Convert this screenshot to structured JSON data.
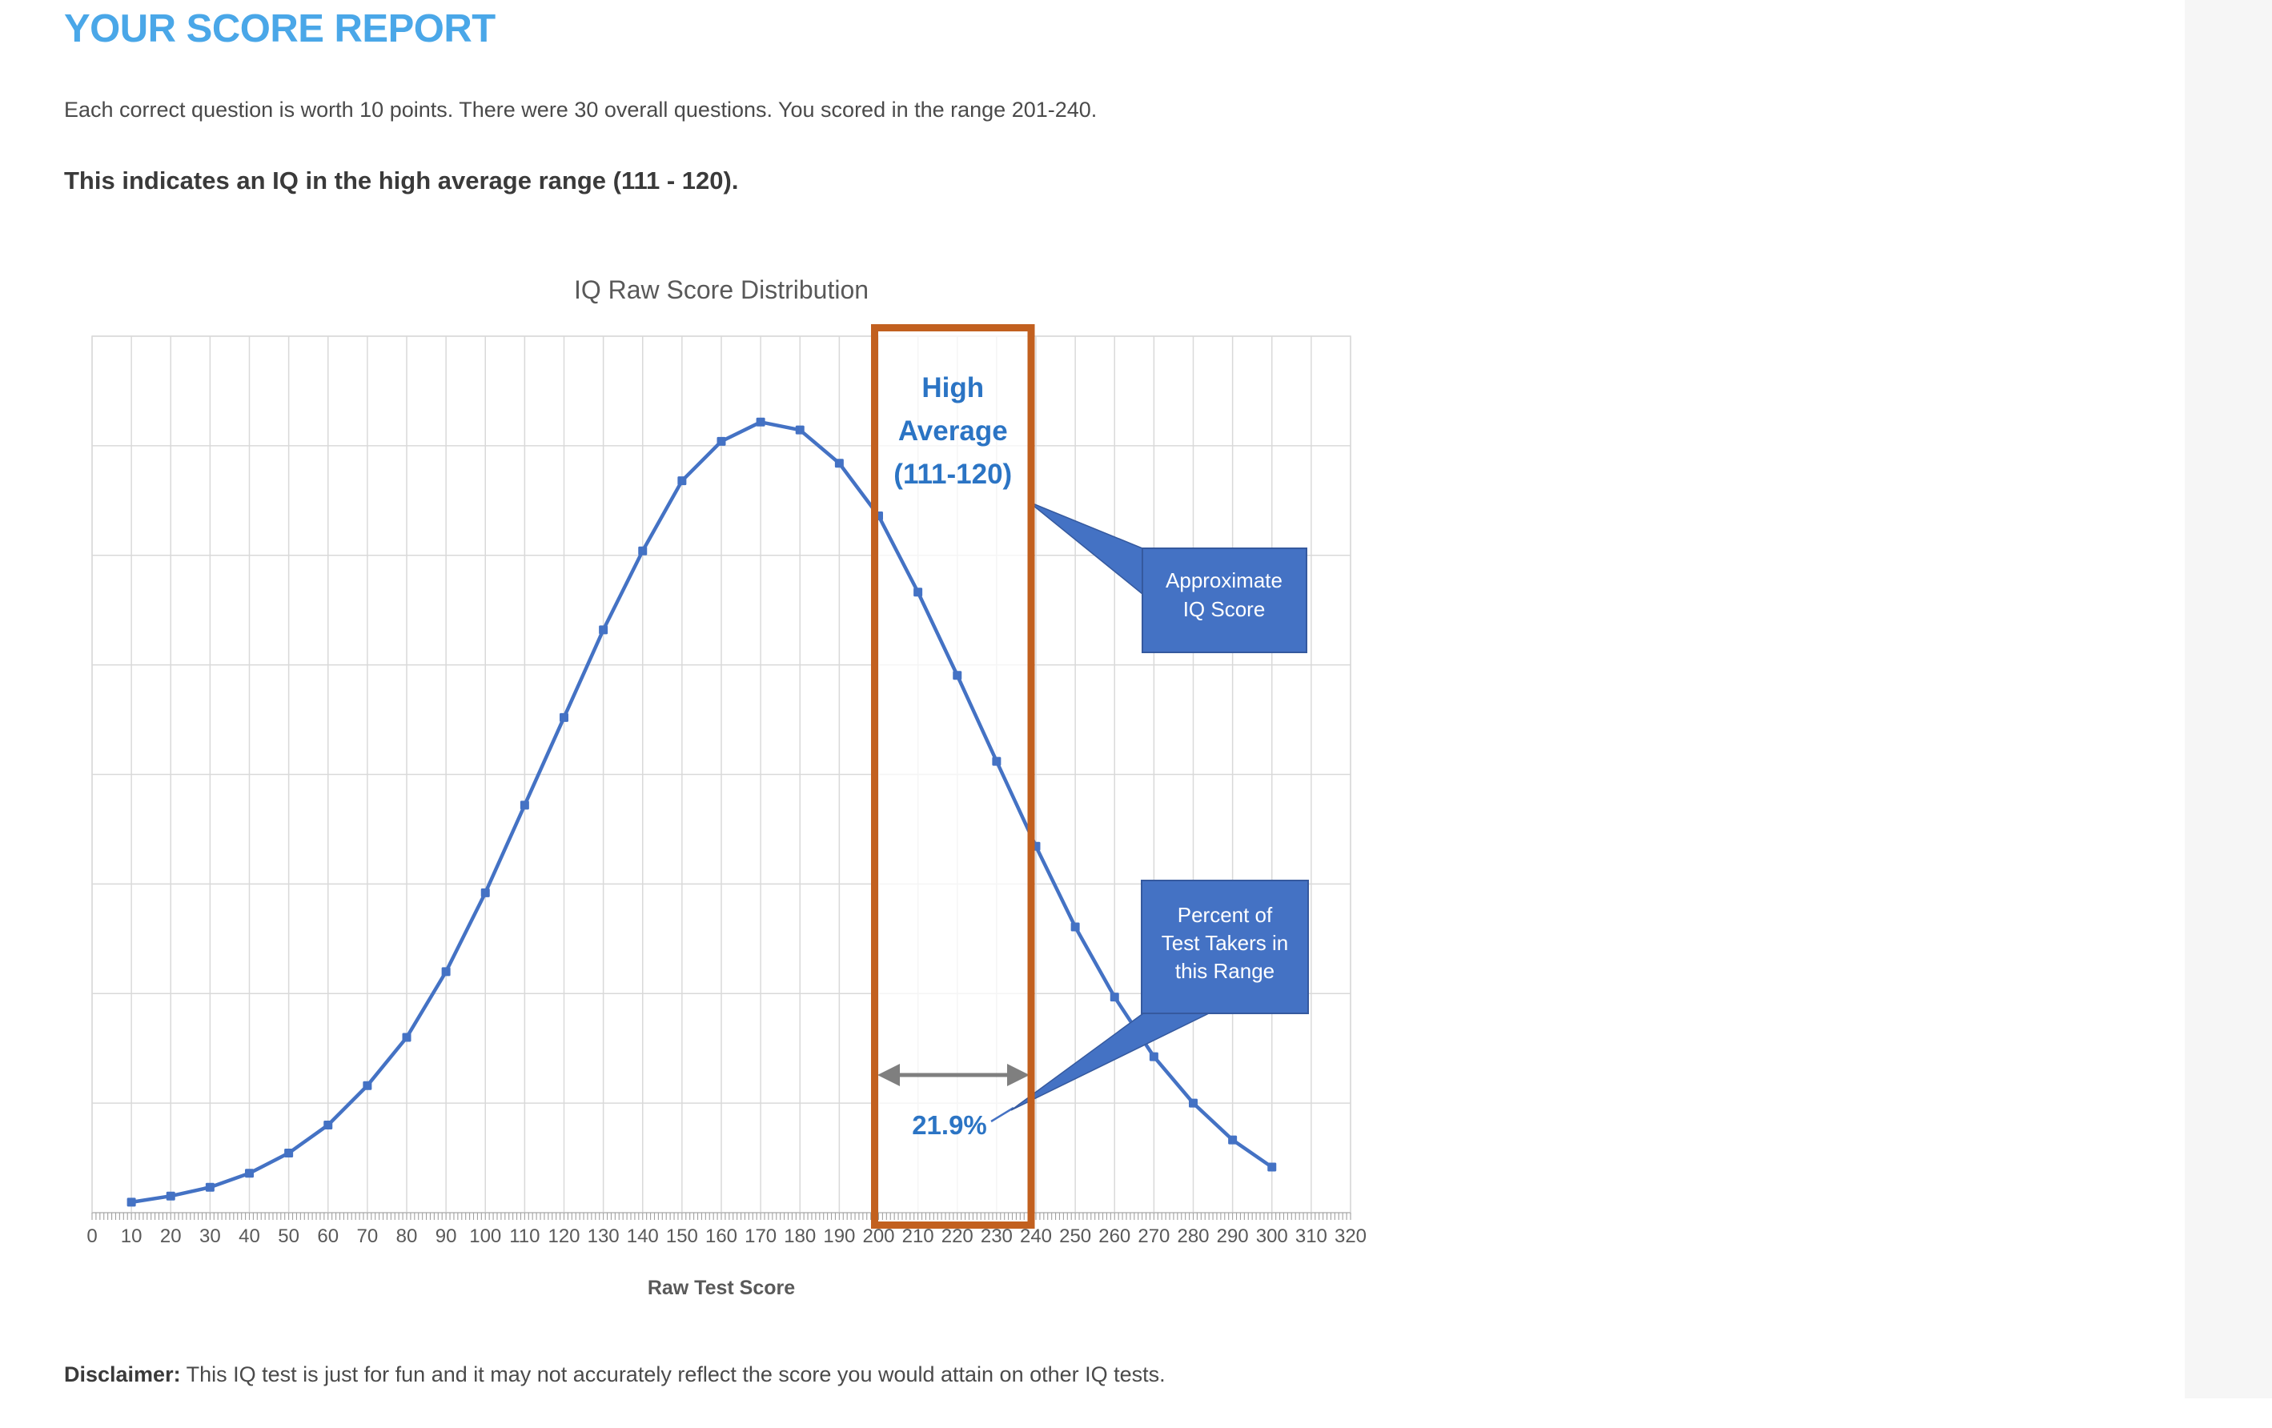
{
  "page": {
    "title": "YOUR SCORE REPORT",
    "intro": "Each correct question is worth 10 points.  There were 30 overall questions. You scored in the range 201-240.",
    "result_heading": "This indicates an IQ in the high average range (111 - 120).",
    "disclaimer_label": "Disclaimer:",
    "disclaimer_text": " This IQ test is just for fun and it may not accurately reflect the score you would attain on other IQ tests."
  },
  "colors": {
    "heading_blue": "#4aa7e8",
    "line_blue": "#4472c4",
    "callout_fill": "#4472c4",
    "callout_border": "#35599e",
    "accent_blue_text": "#2b74c4",
    "highlight_orange": "#c2601f",
    "grid_gray": "#d9d9d9",
    "axis_line_gray": "#bfbfbf",
    "minor_tick_gray": "#a0a0a0",
    "axis_text_gray": "#595959",
    "arrow_gray": "#7f7f7f"
  },
  "chart_data": {
    "type": "line",
    "title": "IQ Raw Score Distribution",
    "xlabel": "Raw Test Score",
    "ylabel": "",
    "y_axis_labels_visible": false,
    "note": "y values are relative heights (percent-like units, unlabeled axis) estimated from the plot",
    "x": [
      10,
      20,
      30,
      40,
      50,
      60,
      70,
      80,
      90,
      100,
      110,
      120,
      130,
      140,
      150,
      160,
      170,
      180,
      190,
      200,
      210,
      220,
      230,
      240,
      250,
      260,
      270,
      280,
      290,
      300
    ],
    "values": [
      1.2,
      1.9,
      2.9,
      4.5,
      6.8,
      10.0,
      14.5,
      20.0,
      27.5,
      36.5,
      46.5,
      56.5,
      66.5,
      75.5,
      83.5,
      88.0,
      90.2,
      89.3,
      85.5,
      79.5,
      70.8,
      61.3,
      51.5,
      41.8,
      32.6,
      24.6,
      17.8,
      12.5,
      8.3,
      5.2
    ],
    "x_ticks": [
      0,
      10,
      20,
      30,
      40,
      50,
      60,
      70,
      80,
      90,
      100,
      110,
      120,
      130,
      140,
      150,
      160,
      170,
      180,
      190,
      200,
      210,
      220,
      230,
      240,
      250,
      260,
      270,
      280,
      290,
      300,
      310,
      320
    ],
    "xlim": [
      0,
      320
    ],
    "ylim": [
      0,
      100
    ],
    "grid": "both",
    "legend": "none",
    "annotations": {
      "highlight_range": {
        "from": 200,
        "to": 240,
        "label_lines": [
          "High",
          "Average",
          "(111-120)"
        ]
      },
      "callout_iq_score": {
        "lines": [
          "Approximate",
          "IQ Score"
        ]
      },
      "callout_percent": {
        "lines": [
          "Percent of",
          "Test Takers in",
          "this Range"
        ]
      },
      "percent_label": "21.9%"
    }
  }
}
